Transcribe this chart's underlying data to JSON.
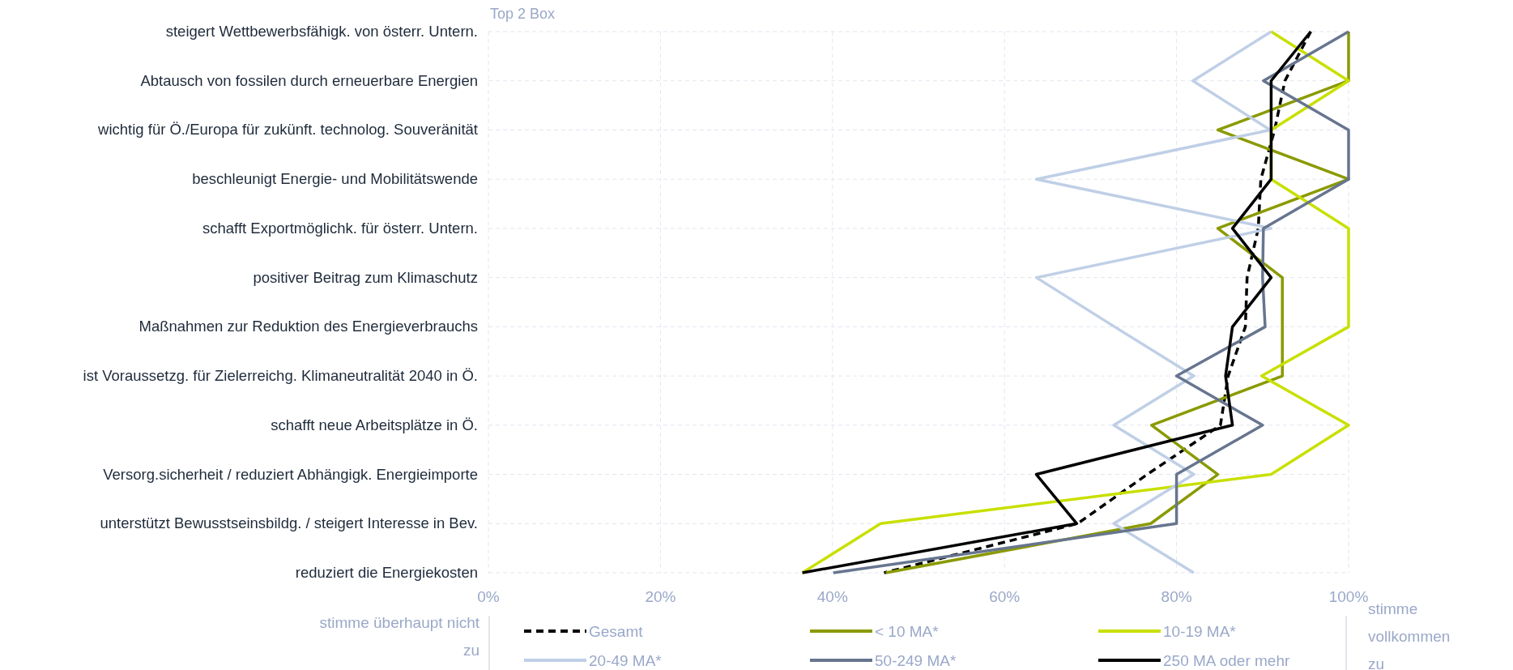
{
  "chart_data": {
    "type": "line",
    "orientation": "horizontal",
    "categories": [
      "steigert Wettbewerbsfähigk. von österr. Untern.",
      "Abtausch von fossilen durch erneuerbare Energien",
      "wichtig für Ö./Europa für zukünft. technolog. Souveränität",
      "beschleunigt Energie- und Mobilitätswende",
      "schafft Exportmöglichk. für österr. Untern.",
      "positiver Beitrag zum Klimaschutz",
      "Maßnahmen zur Reduktion des Energieverbrauchs",
      "ist Voraussetzg. für Zielerreichg. Klimaneutralität 2040 in Ö.",
      "schafft neue Arbeitsplätze in Ö.",
      "Versorg.sicherheit / reduziert Abhängigk. Energieimporte",
      "unterstützt Bewusstseinsbildg. / steigert Interesse in Bev.",
      "reduziert die Energiekosten"
    ],
    "series": [
      {
        "name": "Gesamt",
        "color": "#000000",
        "line_style": "dashed",
        "values": [
          95.6,
          92.6,
          91.4,
          89.8,
          89.5,
          88.2,
          88,
          86,
          85.1,
          76.6,
          68.5,
          46
        ]
      },
      {
        "name": "< 10 MA*",
        "color": "#8a9a00",
        "values": [
          100,
          100,
          84.8,
          100,
          84.8,
          92.3,
          92.3,
          92.3,
          77.1,
          84.8,
          77,
          46.2
        ]
      },
      {
        "name": "10-19 MA*",
        "color": "#c8e000",
        "values": [
          91,
          100,
          91,
          91,
          100,
          100,
          100,
          89.9,
          100,
          91,
          45.6,
          36.5
        ]
      },
      {
        "name": "20-49 MA*",
        "color": "#bfcfe6",
        "values": [
          91,
          81.9,
          90.9,
          63.7,
          91,
          63.7,
          72.8,
          82,
          72.7,
          82,
          72.7,
          82
        ]
      },
      {
        "name": "50-249 MA*",
        "color": "#67758f",
        "values": [
          100,
          90.1,
          100,
          100,
          90.1,
          90,
          90.3,
          80,
          90,
          80,
          80,
          40.1
        ]
      },
      {
        "name": "250 MA oder mehr",
        "color": "#000000",
        "values": [
          95.6,
          91,
          91,
          91,
          86.5,
          91,
          86.5,
          85.7,
          86.5,
          63.7,
          68.4,
          36.5
        ]
      }
    ],
    "xlim": [
      0,
      100
    ],
    "xticks": [
      {
        "value": 0,
        "label": "0%"
      },
      {
        "value": 20,
        "label": "20%"
      },
      {
        "value": 40,
        "label": "40%"
      },
      {
        "value": 60,
        "label": "60%"
      },
      {
        "value": 80,
        "label": "80%"
      },
      {
        "value": 100,
        "label": "100%"
      }
    ],
    "grid": true,
    "legend": "bottom",
    "annotations": [
      "Top 2 Box",
      "stimme überhaupt nicht zu",
      "stimme vollkommen zu"
    ]
  }
}
